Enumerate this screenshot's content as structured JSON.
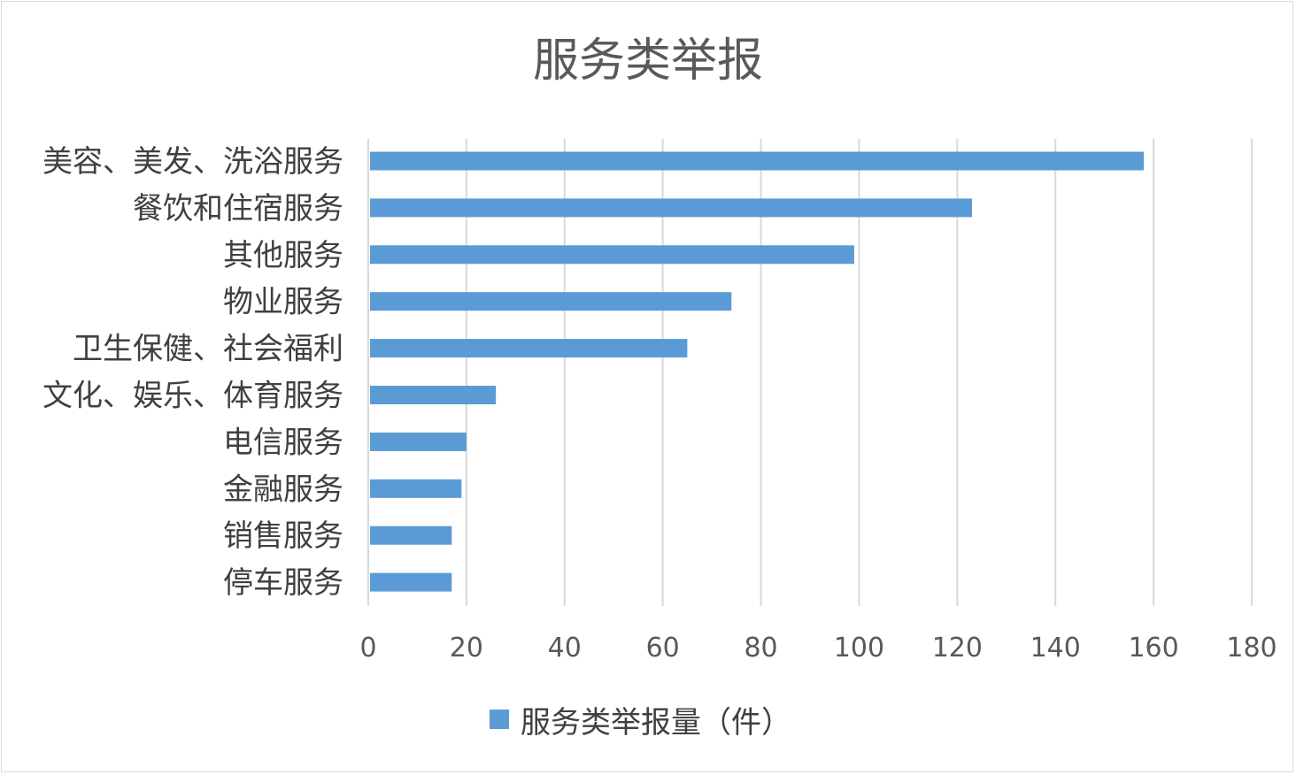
{
  "chart_data": {
    "type": "bar",
    "orientation": "horizontal",
    "title": "服务类举报",
    "categories": [
      "美容、美发、洗浴服务",
      "餐饮和住宿服务",
      "其他服务",
      "物业服务",
      "卫生保健、社会福利",
      "文化、娱乐、体育服务",
      "电信服务",
      "金融服务",
      "销售服务",
      "停车服务"
    ],
    "series": [
      {
        "name": "服务类举报量（件）",
        "values": [
          158,
          123,
          99,
          74,
          65,
          26,
          20,
          19,
          17,
          17
        ],
        "color": "#5b9bd5"
      }
    ],
    "xlim": [
      0,
      180
    ],
    "xticks": [
      "0",
      "20",
      "40",
      "60",
      "80",
      "100",
      "120",
      "140",
      "160",
      "180"
    ],
    "grid": "vertical",
    "legend_position": "bottom",
    "colors": {
      "bar": "#5b9bd5",
      "grid": "#d9d9d9",
      "text": "#595959"
    }
  }
}
